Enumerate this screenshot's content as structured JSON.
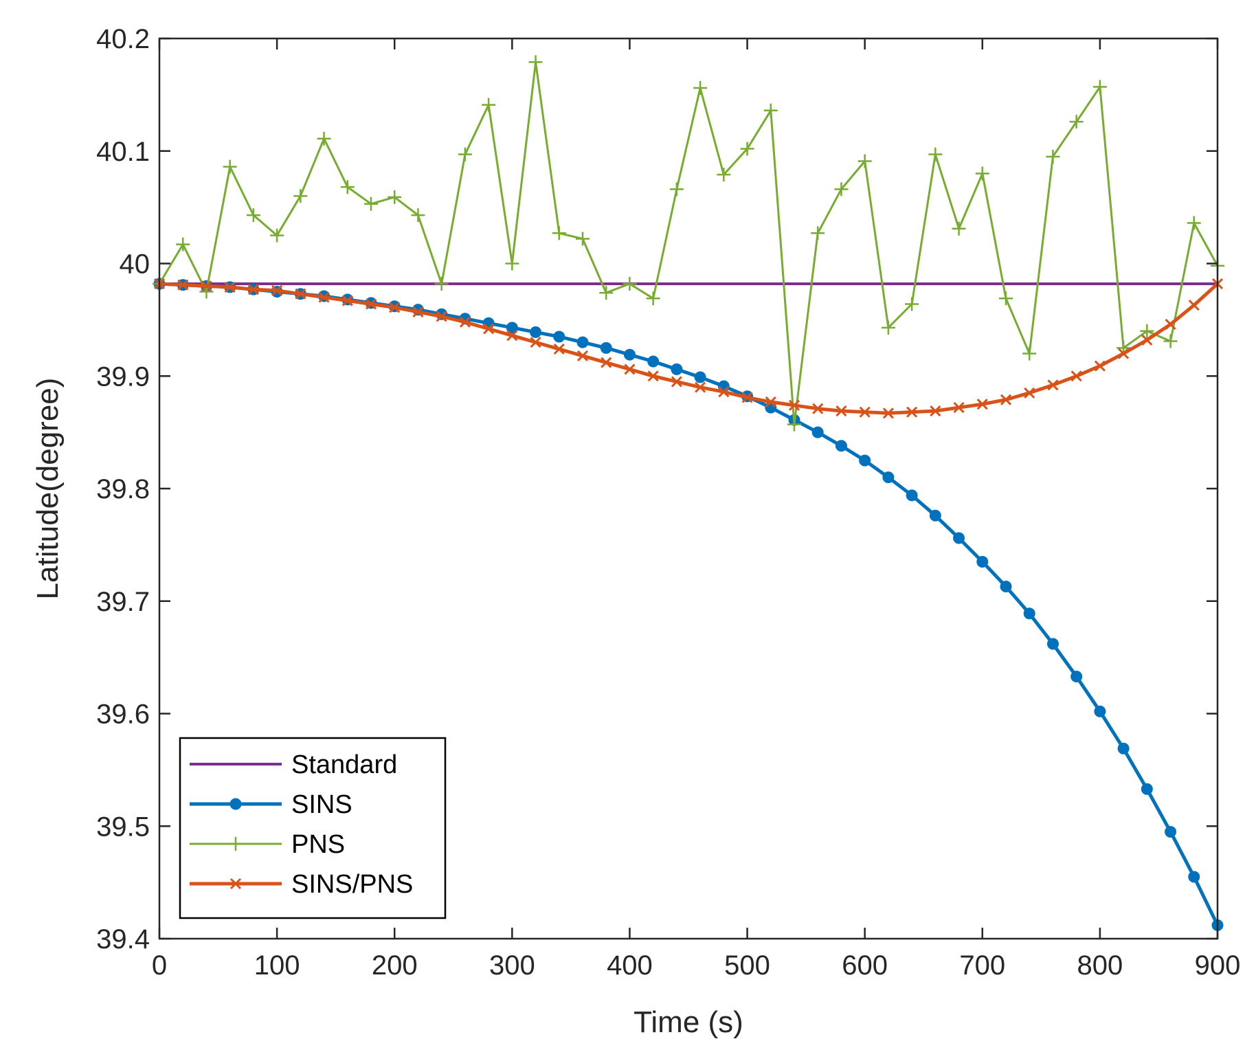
{
  "chart_data": {
    "type": "line",
    "title": "",
    "xlabel": "Time (s)",
    "ylabel": "Latitude(degree)",
    "xlim": [
      0,
      900
    ],
    "ylim": [
      39.4,
      40.2
    ],
    "xticks": [
      0,
      100,
      200,
      300,
      400,
      500,
      600,
      700,
      800,
      900
    ],
    "xtick_labels": [
      "0",
      "100",
      "200",
      "300",
      "400",
      "500",
      "600",
      "700",
      "800",
      "900"
    ],
    "yticks": [
      39.4,
      39.5,
      39.6,
      39.7,
      39.8,
      39.9,
      40.0,
      40.1,
      40.2
    ],
    "ytick_labels": [
      "39.4",
      "39.5",
      "39.6",
      "39.7",
      "39.8",
      "39.9",
      "40",
      "40.1",
      "40.2"
    ],
    "grid": false,
    "legend_position": "bottom-left",
    "x": [
      0,
      20,
      40,
      60,
      80,
      100,
      120,
      140,
      160,
      180,
      200,
      220,
      240,
      260,
      280,
      300,
      320,
      340,
      360,
      380,
      400,
      420,
      440,
      460,
      480,
      500,
      520,
      540,
      560,
      580,
      600,
      620,
      640,
      660,
      680,
      700,
      720,
      740,
      760,
      780,
      800,
      820,
      840,
      860,
      880,
      900
    ],
    "series": [
      {
        "name": "Standard",
        "color": "#7e2f8e",
        "marker": "none",
        "values": [
          39.982,
          39.982,
          39.982,
          39.982,
          39.982,
          39.982,
          39.982,
          39.982,
          39.982,
          39.982,
          39.982,
          39.982,
          39.982,
          39.982,
          39.982,
          39.982,
          39.982,
          39.982,
          39.982,
          39.982,
          39.982,
          39.982,
          39.982,
          39.982,
          39.982,
          39.982,
          39.982,
          39.982,
          39.982,
          39.982,
          39.982,
          39.982,
          39.982,
          39.982,
          39.982,
          39.982,
          39.982,
          39.982,
          39.982,
          39.982,
          39.982,
          39.982,
          39.982,
          39.982,
          39.982,
          39.982
        ]
      },
      {
        "name": "SINS",
        "color": "#0072bd",
        "marker": "dot",
        "values": [
          39.982,
          39.981,
          39.98,
          39.979,
          39.977,
          39.975,
          39.973,
          39.971,
          39.968,
          39.965,
          39.962,
          39.959,
          39.955,
          39.951,
          39.947,
          39.943,
          39.939,
          39.935,
          39.93,
          39.925,
          39.919,
          39.913,
          39.906,
          39.899,
          39.891,
          39.882,
          39.872,
          39.861,
          39.85,
          39.838,
          39.825,
          39.81,
          39.794,
          39.776,
          39.756,
          39.735,
          39.713,
          39.689,
          39.662,
          39.633,
          39.602,
          39.569,
          39.533,
          39.495,
          39.455,
          39.412
        ]
      },
      {
        "name": "PNS",
        "color": "#77ac30",
        "marker": "plus",
        "values": [
          39.982,
          40.017,
          39.975,
          40.086,
          40.043,
          40.025,
          40.06,
          40.111,
          40.068,
          40.053,
          40.059,
          40.043,
          39.982,
          40.097,
          40.141,
          40.0,
          40.179,
          40.027,
          40.022,
          39.974,
          39.982,
          39.969,
          40.066,
          40.156,
          40.079,
          40.102,
          40.136,
          39.857,
          40.027,
          40.066,
          40.091,
          39.943,
          39.964,
          40.097,
          40.031,
          40.08,
          39.969,
          39.92,
          40.095,
          40.126,
          40.157,
          39.925,
          39.94,
          39.931,
          40.036,
          39.998
        ]
      },
      {
        "name": "SINS/PNS",
        "color": "#d95319",
        "marker": "x",
        "values": [
          39.982,
          39.981,
          39.98,
          39.979,
          39.977,
          39.976,
          39.973,
          39.97,
          39.967,
          39.964,
          39.961,
          39.957,
          39.953,
          39.948,
          39.942,
          39.936,
          39.93,
          39.924,
          39.918,
          39.912,
          39.906,
          39.9,
          39.895,
          39.89,
          39.886,
          39.881,
          39.877,
          39.874,
          39.871,
          39.869,
          39.868,
          39.867,
          39.868,
          39.869,
          39.872,
          39.875,
          39.879,
          39.885,
          39.892,
          39.9,
          39.909,
          39.92,
          39.932,
          39.946,
          39.963,
          39.982
        ]
      }
    ]
  }
}
